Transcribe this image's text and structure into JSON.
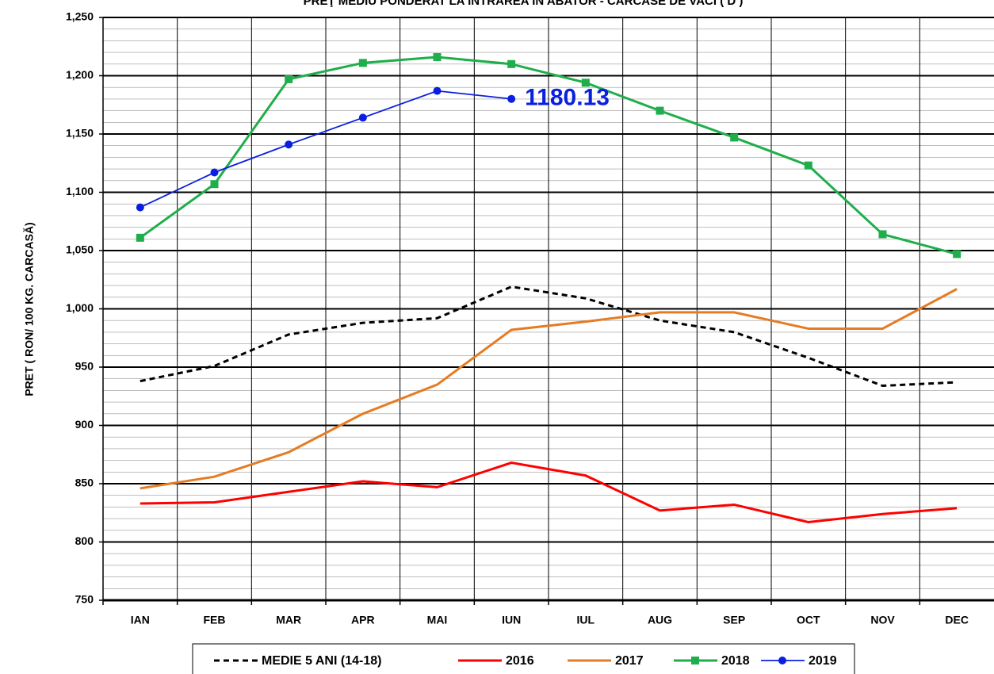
{
  "chart_data": {
    "type": "line",
    "title": "PREŢ MEDIU PONDERAT LA INTRAREA ÎN ABATOR - CARCASE DE VACI ( D )",
    "y_label": "PRET ( RON/ 100 KG. CARCASĂ)",
    "categories": [
      "IAN",
      "FEB",
      "MAR",
      "APR",
      "MAI",
      "IUN",
      "IUL",
      "AUG",
      "SEP",
      "OCT",
      "NOV",
      "DEC"
    ],
    "ylim": [
      750,
      1250
    ],
    "yticks": [
      750,
      800,
      850,
      900,
      950,
      {
        "value": 1000,
        "label": "1,000"
      },
      {
        "value": 1050,
        "label": "1,050"
      },
      {
        "value": 1100,
        "label": "1,100"
      },
      {
        "value": 1150,
        "label": "1,150"
      },
      {
        "value": 1200,
        "label": "1,200"
      },
      {
        "value": 1250,
        "label": "1,250"
      }
    ],
    "minor_yticks": [
      760,
      770,
      780,
      790,
      810,
      820,
      830,
      840,
      860,
      870,
      880,
      890,
      910,
      920,
      930,
      940,
      960,
      970,
      980,
      990,
      1010,
      1020,
      1030,
      1040,
      1060,
      1070,
      1080,
      1090,
      1110,
      1120,
      1130,
      1140,
      1160,
      1170,
      1180,
      1190,
      1210,
      1220,
      1230,
      1240
    ],
    "grid": true,
    "legend": "bottom",
    "series": [
      {
        "name": "MEDIE 5 ANI (14-18)",
        "color": "#000000",
        "dash": true,
        "values": [
          938,
          951,
          978,
          988,
          992,
          1019,
          1009,
          990,
          980,
          958,
          934,
          937
        ]
      },
      {
        "name": "2016",
        "color": "#ff0000",
        "values": [
          833,
          834,
          843,
          852,
          847,
          868,
          857,
          827,
          832,
          817,
          824,
          829
        ]
      },
      {
        "name": "2017",
        "color": "#e57c24",
        "values": [
          846,
          856,
          877,
          910,
          935,
          982,
          989,
          997,
          997,
          983,
          983,
          1017
        ]
      },
      {
        "name": "2018",
        "color": "#1fae4b",
        "marker": "square",
        "values": [
          1061,
          1107,
          1197,
          1211,
          1216,
          1210,
          1194,
          1170,
          1147,
          1123,
          1064,
          1047
        ]
      },
      {
        "name": "2019",
        "color": "#0a1fe0",
        "marker": "circle",
        "thin": true,
        "values": [
          1087,
          1117,
          1141,
          1164,
          1187,
          1180.13,
          null,
          null,
          null,
          null,
          null,
          null
        ],
        "label_index": 5
      }
    ]
  }
}
